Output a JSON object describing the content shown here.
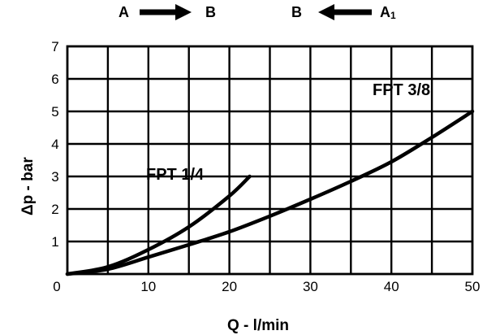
{
  "flow_direction": {
    "left": {
      "from": "A",
      "to": "B"
    },
    "right": {
      "from_base": "A",
      "from_sub": "1",
      "to": "B"
    }
  },
  "chart_data": {
    "type": "line",
    "xlabel": "Q - l/min",
    "ylabel_symbol": "Δ",
    "ylabel_rest": "p - bar",
    "xlim": [
      0,
      50
    ],
    "ylim": [
      0,
      7
    ],
    "x_ticks": [
      0,
      10,
      20,
      30,
      40,
      50
    ],
    "y_ticks": [
      1,
      2,
      3,
      4,
      5,
      6,
      7
    ],
    "grid": true,
    "series": [
      {
        "name": "FPT 1/4",
        "x": [
          0,
          5,
          10,
          15,
          20,
          22.5
        ],
        "y": [
          0,
          0.22,
          0.75,
          1.45,
          2.4,
          3.0
        ]
      },
      {
        "name": "FPT 3/8",
        "x": [
          0,
          5,
          10,
          15,
          20,
          25,
          30,
          35,
          40,
          45,
          50
        ],
        "y": [
          0,
          0.15,
          0.52,
          0.9,
          1.3,
          1.78,
          2.3,
          2.85,
          3.45,
          4.2,
          5.0
        ]
      }
    ]
  }
}
